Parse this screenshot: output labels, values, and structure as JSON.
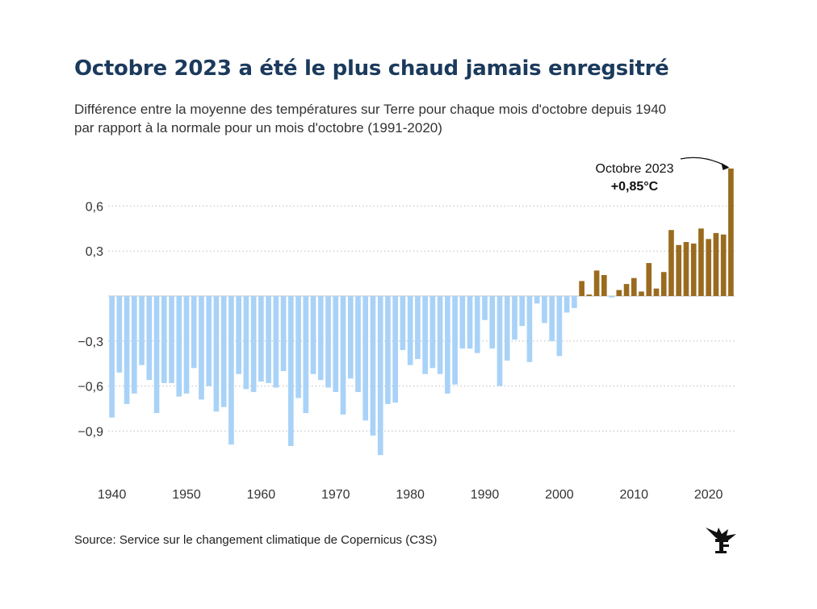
{
  "title": "Octobre 2023 a été le plus chaud jamais enregsitré",
  "subtitle": [
    "Différence entre la moyenne des températures sur Terre pour chaque mois d'octobre depuis 1940",
    "par rapport à la normale pour un mois d'octobre (1991-2020)"
  ],
  "source": "Source: Service sur le changement climatique de Copernicus (C3S)",
  "logo_icon": "le-figaro-logo-icon",
  "colors": {
    "negative": "#a9d2f7",
    "positive": "#9a6b1f",
    "title": "#1b3a5c"
  },
  "chart_data": {
    "type": "bar",
    "x": [
      1940,
      1941,
      1942,
      1943,
      1944,
      1945,
      1946,
      1947,
      1948,
      1949,
      1950,
      1951,
      1952,
      1953,
      1954,
      1955,
      1956,
      1957,
      1958,
      1959,
      1960,
      1961,
      1962,
      1963,
      1964,
      1965,
      1966,
      1967,
      1968,
      1969,
      1970,
      1971,
      1972,
      1973,
      1974,
      1975,
      1976,
      1977,
      1978,
      1979,
      1980,
      1981,
      1982,
      1983,
      1984,
      1985,
      1986,
      1987,
      1988,
      1989,
      1990,
      1991,
      1992,
      1993,
      1994,
      1995,
      1996,
      1997,
      1998,
      1999,
      2000,
      2001,
      2002,
      2003,
      2004,
      2005,
      2006,
      2007,
      2008,
      2009,
      2010,
      2011,
      2012,
      2013,
      2014,
      2015,
      2016,
      2017,
      2018,
      2019,
      2020,
      2021,
      2022,
      2023
    ],
    "values": [
      -0.81,
      -0.51,
      -0.72,
      -0.65,
      -0.46,
      -0.56,
      -0.78,
      -0.58,
      -0.58,
      -0.67,
      -0.65,
      -0.48,
      -0.69,
      -0.6,
      -0.77,
      -0.74,
      -0.99,
      -0.52,
      -0.62,
      -0.64,
      -0.57,
      -0.58,
      -0.61,
      -0.5,
      -1.0,
      -0.68,
      -0.78,
      -0.52,
      -0.56,
      -0.61,
      -0.64,
      -0.79,
      -0.55,
      -0.64,
      -0.83,
      -0.93,
      -1.06,
      -0.72,
      -0.71,
      -0.36,
      -0.46,
      -0.42,
      -0.52,
      -0.48,
      -0.52,
      -0.65,
      -0.59,
      -0.35,
      -0.35,
      -0.38,
      -0.16,
      -0.35,
      -0.6,
      -0.43,
      -0.29,
      -0.2,
      -0.44,
      -0.05,
      -0.18,
      -0.3,
      -0.4,
      -0.11,
      -0.08,
      0.1,
      0.01,
      0.17,
      0.14,
      -0.01,
      0.04,
      0.08,
      0.12,
      0.03,
      0.22,
      0.05,
      0.16,
      0.44,
      0.34,
      0.36,
      0.35,
      0.45,
      0.38,
      0.42,
      0.41,
      0.85
    ],
    "y_ticks": [
      "0,6",
      "0,3",
      "−0,3",
      "−0,6",
      "−0,9"
    ],
    "x_ticks": [
      "1940",
      "1950",
      "1960",
      "1970",
      "1980",
      "1990",
      "2000",
      "2010",
      "2020"
    ],
    "ylim": [
      -1.12,
      0.88
    ],
    "grid": "horizontal dotted",
    "annotation": {
      "year": 2023,
      "label": "Octobre 2023",
      "value_label": "+0,85°C"
    }
  }
}
